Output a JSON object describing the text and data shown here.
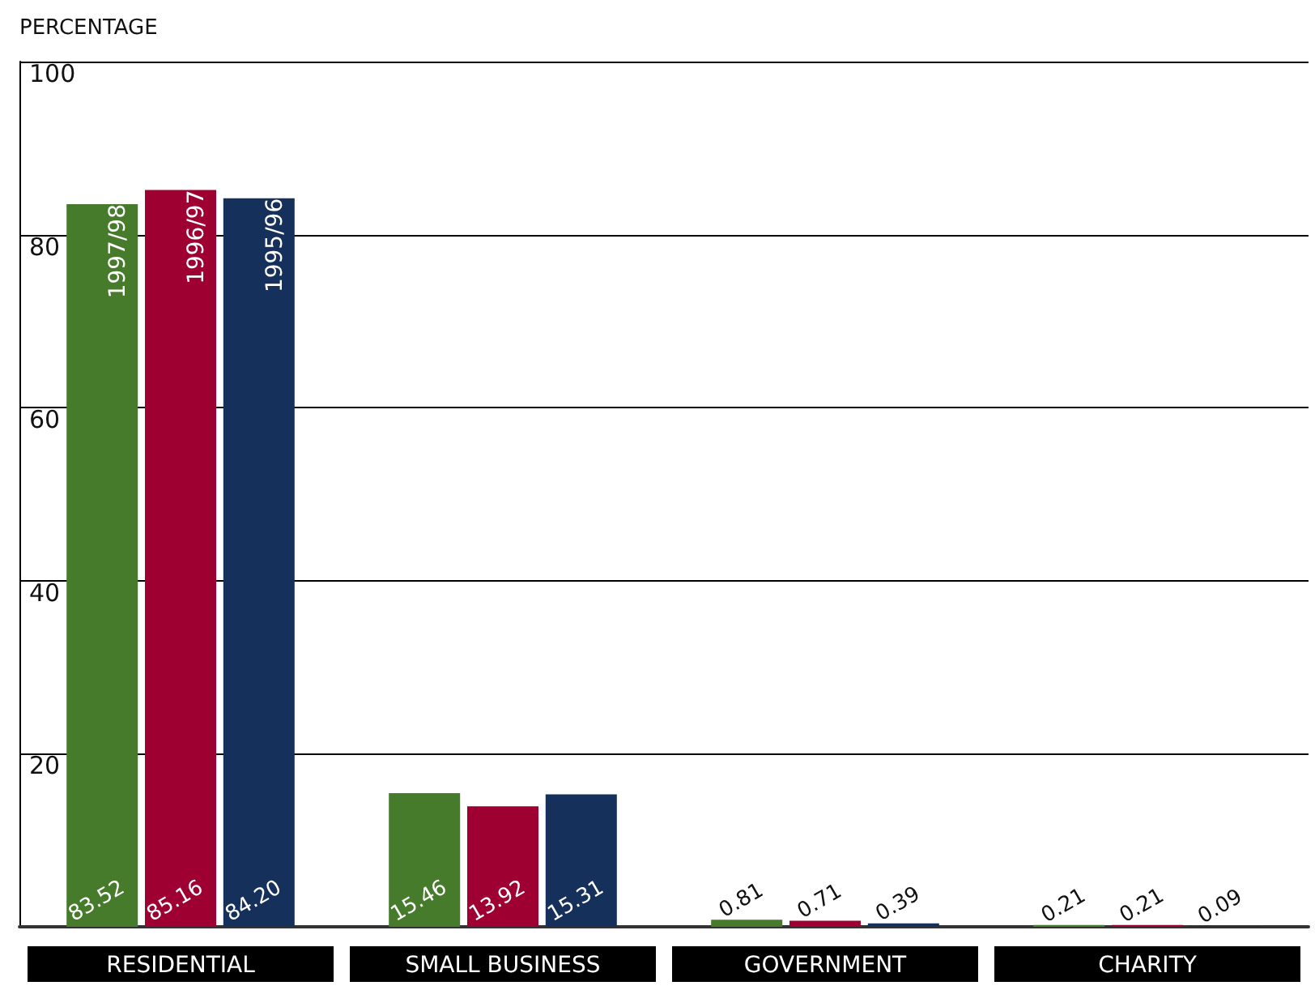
{
  "chart_data": {
    "type": "bar",
    "ylabel": "PERCENTAGE",
    "categories": [
      "RESIDENTIAL",
      "SMALL BUSINESS",
      "GOVERNMENT",
      "CHARITY"
    ],
    "series": [
      {
        "name": "1997/98",
        "color": "#467b2c",
        "values": [
          83.52,
          15.46,
          0.81,
          0.21
        ],
        "value_labels": [
          "83.52",
          "15.46",
          "0.81",
          "0.21"
        ]
      },
      {
        "name": "1996/97",
        "color": "#9e0032",
        "values": [
          85.16,
          13.92,
          0.71,
          0.21
        ],
        "value_labels": [
          "85.16",
          "13.92",
          "0.71",
          "0.21"
        ]
      },
      {
        "name": "1995/96",
        "color": "#15305a",
        "values": [
          84.2,
          15.31,
          0.39,
          0.09
        ],
        "value_labels": [
          "84.20",
          "15.31",
          "0.39",
          "0.09"
        ]
      }
    ],
    "ylim": [
      0,
      100
    ],
    "yticks": [
      {
        "value": 0,
        "label": null
      },
      20,
      40,
      60,
      80,
      100
    ],
    "grid": "y",
    "legend": false
  }
}
